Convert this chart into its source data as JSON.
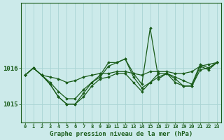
{
  "title": "Graphe pression niveau de la mer (hPa)",
  "background_color": "#cceaea",
  "grid_color": "#aad4d4",
  "line_color": "#1a5c1a",
  "marker_color": "#1a5c1a",
  "xlim": [
    -0.5,
    23.5
  ],
  "ylim": [
    1014.5,
    1017.8
  ],
  "yticks": [
    1015,
    1016
  ],
  "xticks": [
    0,
    1,
    2,
    3,
    4,
    5,
    6,
    7,
    8,
    9,
    10,
    11,
    12,
    13,
    14,
    15,
    16,
    17,
    18,
    19,
    20,
    21,
    22,
    23
  ],
  "series": [
    [
      1015.8,
      1016.0,
      1015.8,
      1015.75,
      1015.7,
      1015.6,
      1015.65,
      1015.75,
      1015.8,
      1015.85,
      1015.85,
      1015.9,
      1015.9,
      1015.85,
      1015.8,
      1015.9,
      1015.9,
      1015.9,
      1015.85,
      1015.85,
      1015.9,
      1016.05,
      1016.1,
      1016.15
    ],
    [
      1015.8,
      1016.0,
      1015.8,
      1015.6,
      1015.35,
      1015.15,
      1015.15,
      1015.4,
      1015.6,
      1015.8,
      1016.15,
      1016.15,
      1016.25,
      1015.85,
      1015.55,
      1017.1,
      1015.7,
      1015.85,
      1015.75,
      1015.65,
      1015.55,
      1016.1,
      1016.0,
      1016.15
    ],
    [
      1015.8,
      1016.0,
      1015.8,
      1015.55,
      1015.2,
      1015.0,
      1015.0,
      1015.2,
      1015.5,
      1015.7,
      1015.75,
      1015.85,
      1015.85,
      1015.6,
      1015.35,
      1015.6,
      1015.85,
      1015.85,
      1015.7,
      1015.5,
      1015.5,
      1015.95,
      1016.0,
      1016.15
    ],
    [
      1015.8,
      1016.0,
      1015.8,
      1015.55,
      1015.2,
      1015.0,
      1015.0,
      1015.3,
      1015.6,
      1015.75,
      1016.05,
      1016.15,
      1016.25,
      1015.75,
      1015.45,
      1015.6,
      1015.75,
      1015.85,
      1015.6,
      1015.5,
      1015.5,
      1016.05,
      1015.95,
      1016.15
    ]
  ]
}
